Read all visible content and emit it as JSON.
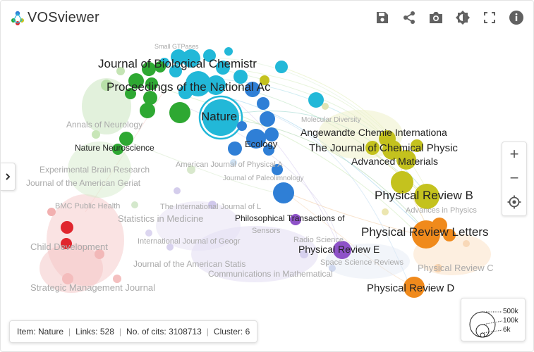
{
  "app": {
    "name": "VOSviewer"
  },
  "toolbar": {
    "save_icon": "save-icon",
    "share_icon": "share-icon",
    "screenshot_icon": "camera-icon",
    "theme_icon": "brightness-icon",
    "fullscreen_icon": "fullscreen-icon",
    "info_icon": "info-icon"
  },
  "labels": {
    "small_tpases": "Small GTPases",
    "jbc": "Journal of Biological Chemistr",
    "pnas": "Proceedings of the National Ac",
    "nature": "Nature",
    "annals_neuro": "Annals of Neurology",
    "nature_neuro": "Nature Neuroscience",
    "ecology": "Ecology",
    "exp_brain": "Experimental Brain Research",
    "j_am_geriat": "Journal of the American Geriat",
    "am_j_phys_a": "American Journal of Physical A",
    "j_paleo": "Journal of Paleolimnology",
    "mol_div": "Molecular Diversity",
    "angewandte": "Angewandte Chemie Internationa",
    "j_chem_phys": "The Journal of Chemical Physic",
    "adv_mat": "Advanced Materials",
    "prb": "Physical Review B",
    "adv_phys": "Advances in Physics",
    "bmc_ph": "BMC Public Health",
    "intl_j_l": "The International Journal of L",
    "stat_med": "Statistics in Medicine",
    "phil_trans": "Philosophical Transactions of",
    "sensors": "Sensors",
    "radio_sci": "Radio Science",
    "prl": "Physical Review Letters",
    "intl_j_geogr": "International Journal of Geogr",
    "child_dev": "Child Development",
    "pre": "Physical Review E",
    "space_sci": "Space Science Reviews",
    "j_am_stat": "Journal of the American Statis",
    "comm_math": "Communications in Mathematical",
    "prc": "Physical Review C",
    "strat_mgmt": "Strategic Management Journal",
    "prd": "Physical Review D"
  },
  "colors": {
    "cyan": "#22b8d8",
    "blue": "#2f7fd6",
    "green": "#2ea832",
    "olive": "#c4c21e",
    "orange": "#f08a1c",
    "purple": "#8e52c8",
    "red": "#e0262e",
    "pink": "#f2a8a8",
    "lightgreen": "#a8d898",
    "lavender": "#c8c0e8"
  },
  "info": {
    "item_label": "Item:",
    "item_value": "Nature",
    "links_label": "Links:",
    "links_value": "528",
    "cits_label": "No. of cits:",
    "cits_value": "3108713",
    "cluster_label": "Cluster:",
    "cluster_value": "6"
  },
  "legend": {
    "v1": "500k",
    "v2": "100k",
    "v3": "6k"
  },
  "controls": {
    "zoom_in": "+",
    "zoom_out": "−"
  }
}
